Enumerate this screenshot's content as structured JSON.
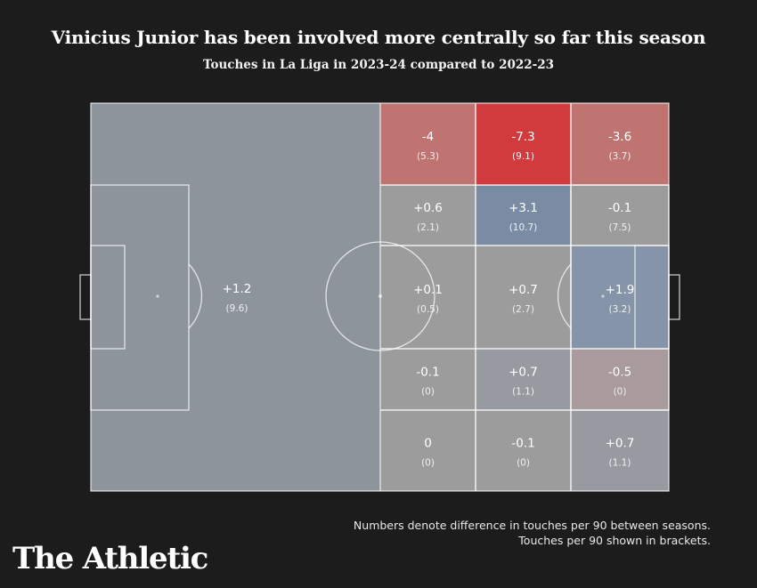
{
  "title": "Vinicius Junior has been involved more centrally so far this season",
  "subtitle": "Touches in La Liga in 2023-24 compared to 2022-23",
  "footnote_line1": "Numbers denote difference in touches per 90 between seasons.",
  "footnote_line2": "Touches per 90 shown in brackets.",
  "brand": "The Athletic",
  "colors": {
    "background": "#1c1c1c",
    "neutral_zone": "#8e949c",
    "strong_negative": "#d13b3d",
    "moderate_negative": "#bf7472",
    "slight_negative": "#a99b9d",
    "neutral": "#9c9c9c",
    "positive": "#7a8ca4",
    "lines": "#ffffff"
  },
  "chart_data": {
    "type": "heatmap",
    "title": "Vinicius Junior has been involved more centrally so far this season",
    "subtitle": "Touches in La Liga in 2023-24 compared to 2022-23",
    "legend_note": [
      "Numbers denote difference in touches per 90 between seasons.",
      "Touches per 90 shown in brackets."
    ],
    "own_half": {
      "diff": "+1.2",
      "per90": "(9.6)"
    },
    "attacking_grid": {
      "columns": 3,
      "rows": 5,
      "cells": [
        {
          "row": 0,
          "col": 0,
          "diff": "-4",
          "per90": "(5.3)",
          "color": "#bf7472"
        },
        {
          "row": 0,
          "col": 1,
          "diff": "-7.3",
          "per90": "(9.1)",
          "color": "#d13b3d"
        },
        {
          "row": 0,
          "col": 2,
          "diff": "-3.6",
          "per90": "(3.7)",
          "color": "#bf7472"
        },
        {
          "row": 1,
          "col": 0,
          "diff": "+0.6",
          "per90": "(2.1)",
          "color": "#9c9c9c"
        },
        {
          "row": 1,
          "col": 1,
          "diff": "+3.1",
          "per90": "(10.7)",
          "color": "#7a8ca4"
        },
        {
          "row": 1,
          "col": 2,
          "diff": "-0.1",
          "per90": "(7.5)",
          "color": "#9c9c9c"
        },
        {
          "row": 2,
          "col": 0,
          "diff": "+0.1",
          "per90": "(0.5)",
          "color": "#9c9c9c"
        },
        {
          "row": 2,
          "col": 1,
          "diff": "+0.7",
          "per90": "(2.7)",
          "color": "#9c9c9c"
        },
        {
          "row": 2,
          "col": 2,
          "diff": "+1.9",
          "per90": "(3.2)",
          "color": "#8594a8"
        },
        {
          "row": 3,
          "col": 0,
          "diff": "-0.1",
          "per90": "(0)",
          "color": "#9c9c9c"
        },
        {
          "row": 3,
          "col": 1,
          "diff": "+0.7",
          "per90": "(1.1)",
          "color": "#979aa0"
        },
        {
          "row": 3,
          "col": 2,
          "diff": "-0.5",
          "per90": "(0)",
          "color": "#a99b9d"
        },
        {
          "row": 4,
          "col": 0,
          "diff": "0",
          "per90": "(0)",
          "color": "#9c9c9c"
        },
        {
          "row": 4,
          "col": 1,
          "diff": "-0.1",
          "per90": "(0)",
          "color": "#9c9c9c"
        },
        {
          "row": 4,
          "col": 2,
          "diff": "+0.7",
          "per90": "(1.1)",
          "color": "#979aa0"
        }
      ]
    }
  }
}
